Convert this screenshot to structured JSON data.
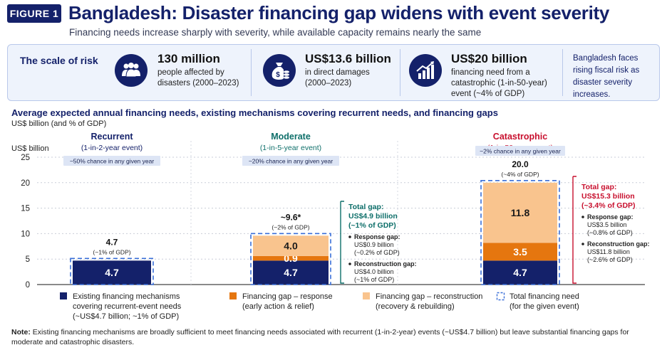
{
  "header": {
    "figure_label": "FIGURE 1",
    "title": "Bangladesh: Disaster financing gap widens with event severity",
    "subtitle": "Financing needs increase sharply with severity, while available capacity remains nearly the same"
  },
  "risk_panel": {
    "title": "The scale of risk",
    "stats": [
      {
        "icon": "people-icon",
        "value": "130 million",
        "line1": "people affected by",
        "line2": "disasters (2000–2023)",
        "line3": ""
      },
      {
        "icon": "money-bag-icon",
        "value": "US$13.6 billion",
        "line1": "in direct damages",
        "line2": "(2000–2023)",
        "line3": ""
      },
      {
        "icon": "growth-chart-icon",
        "value": "US$20 billion",
        "line1": "financing need from a",
        "line2": "catastrophic (1-in-50-year)",
        "line3": "event (~4% of GDP)"
      }
    ],
    "note": "Bangladesh faces rising fiscal risk as disaster severity increases."
  },
  "section": {
    "title": "Average expected annual financing needs, existing mechanisms covering recurrent needs, and financing gaps",
    "subtitle": "US$ billion (and % of GDP)"
  },
  "colors": {
    "navy": "#14216a",
    "orange": "#e5760f",
    "peach": "#f9c48e",
    "teal": "#0e6f6a",
    "red": "#c8102e",
    "dash": "#3a6fd8"
  },
  "chart_data": {
    "type": "bar",
    "stacked": true,
    "ylabel": "US$ billion",
    "ylim": [
      0,
      25
    ],
    "yticks": [
      0,
      5,
      10,
      15,
      20,
      25
    ],
    "grid": true,
    "categories": [
      "Recurrent",
      "Moderate",
      "Catastrophic"
    ],
    "category_details": [
      {
        "period": "(1-in-2-year event)",
        "chance": "~50% chance in any given year",
        "total_label": "4.7",
        "total_gdp": "(~1% of GDP)"
      },
      {
        "period": "(1-in-5-year event)",
        "chance": "~20% chance in any given year",
        "total_label": "~9.6*",
        "total_gdp": "(~2% of GDP)"
      },
      {
        "period": "(1-in-50-year event)",
        "chance": "~2% chance in any given year",
        "total_label": "20.0",
        "total_gdp": "(~4% of GDP)"
      }
    ],
    "totals": [
      4.7,
      9.6,
      20.0
    ],
    "series": [
      {
        "name": "Existing financing mechanisms covering recurrent-event needs (~US$4.7 billion; ~1% of GDP)",
        "values": [
          4.7,
          4.7,
          4.7
        ],
        "labels": [
          "4.7",
          "4.7",
          "4.7"
        ]
      },
      {
        "name": "Financing gap – response (early action & relief)",
        "values": [
          0,
          0.9,
          3.5
        ],
        "labels": [
          "",
          "0.9",
          "3.5"
        ]
      },
      {
        "name": "Financing gap – reconstruction (recovery & rebuilding)",
        "values": [
          0,
          4.0,
          11.8
        ],
        "labels": [
          "",
          "4.0",
          "11.8"
        ]
      }
    ],
    "legend": [
      {
        "label1": "Existing financing mechanisms",
        "label2": "covering recurrent-event needs",
        "label3": "(~US$4.7 billion; ~1% of GDP)"
      },
      {
        "label1": "Financing gap – response",
        "label2": "(early action & relief)",
        "label3": ""
      },
      {
        "label1": "Financing gap – reconstruction",
        "label2": "(recovery & rebuilding)",
        "label3": ""
      },
      {
        "label1": "Total financing need",
        "label2": "(for the given event)",
        "label3": ""
      }
    ],
    "annotations": {
      "moderate": {
        "gap_title1": "Total gap:",
        "gap_title2": "US$4.9 billion",
        "gap_title3": "(~1% of GDP)",
        "response1": "Response gap:",
        "response2": "US$0.9 billion",
        "response3": "(~0.2% of GDP)",
        "recon1": "Reconstruction gap:",
        "recon2": "US$4.0 billion",
        "recon3": "(~1% of GDP)"
      },
      "catastrophic": {
        "gap_title1": "Total gap:",
        "gap_title2": "US$15.3 billion",
        "gap_title3": "(~3.4% of GDP)",
        "response1": "Response gap:",
        "response2": "US$3.5 billion",
        "response3": "(~0.8% of GDP)",
        "recon1": "Reconstruction gap:",
        "recon2": "US$11.8 billion",
        "recon3": "(~2.6% of GDP)"
      }
    }
  },
  "footnote": {
    "label": "Note:",
    "text": " Existing financing mechanisms are broadly sufficient to meet financing needs associated with recurrent (1-in-2-year) events (~US$4.7 billion) but leave substantial financing gaps for moderate and catastrophic disasters."
  }
}
